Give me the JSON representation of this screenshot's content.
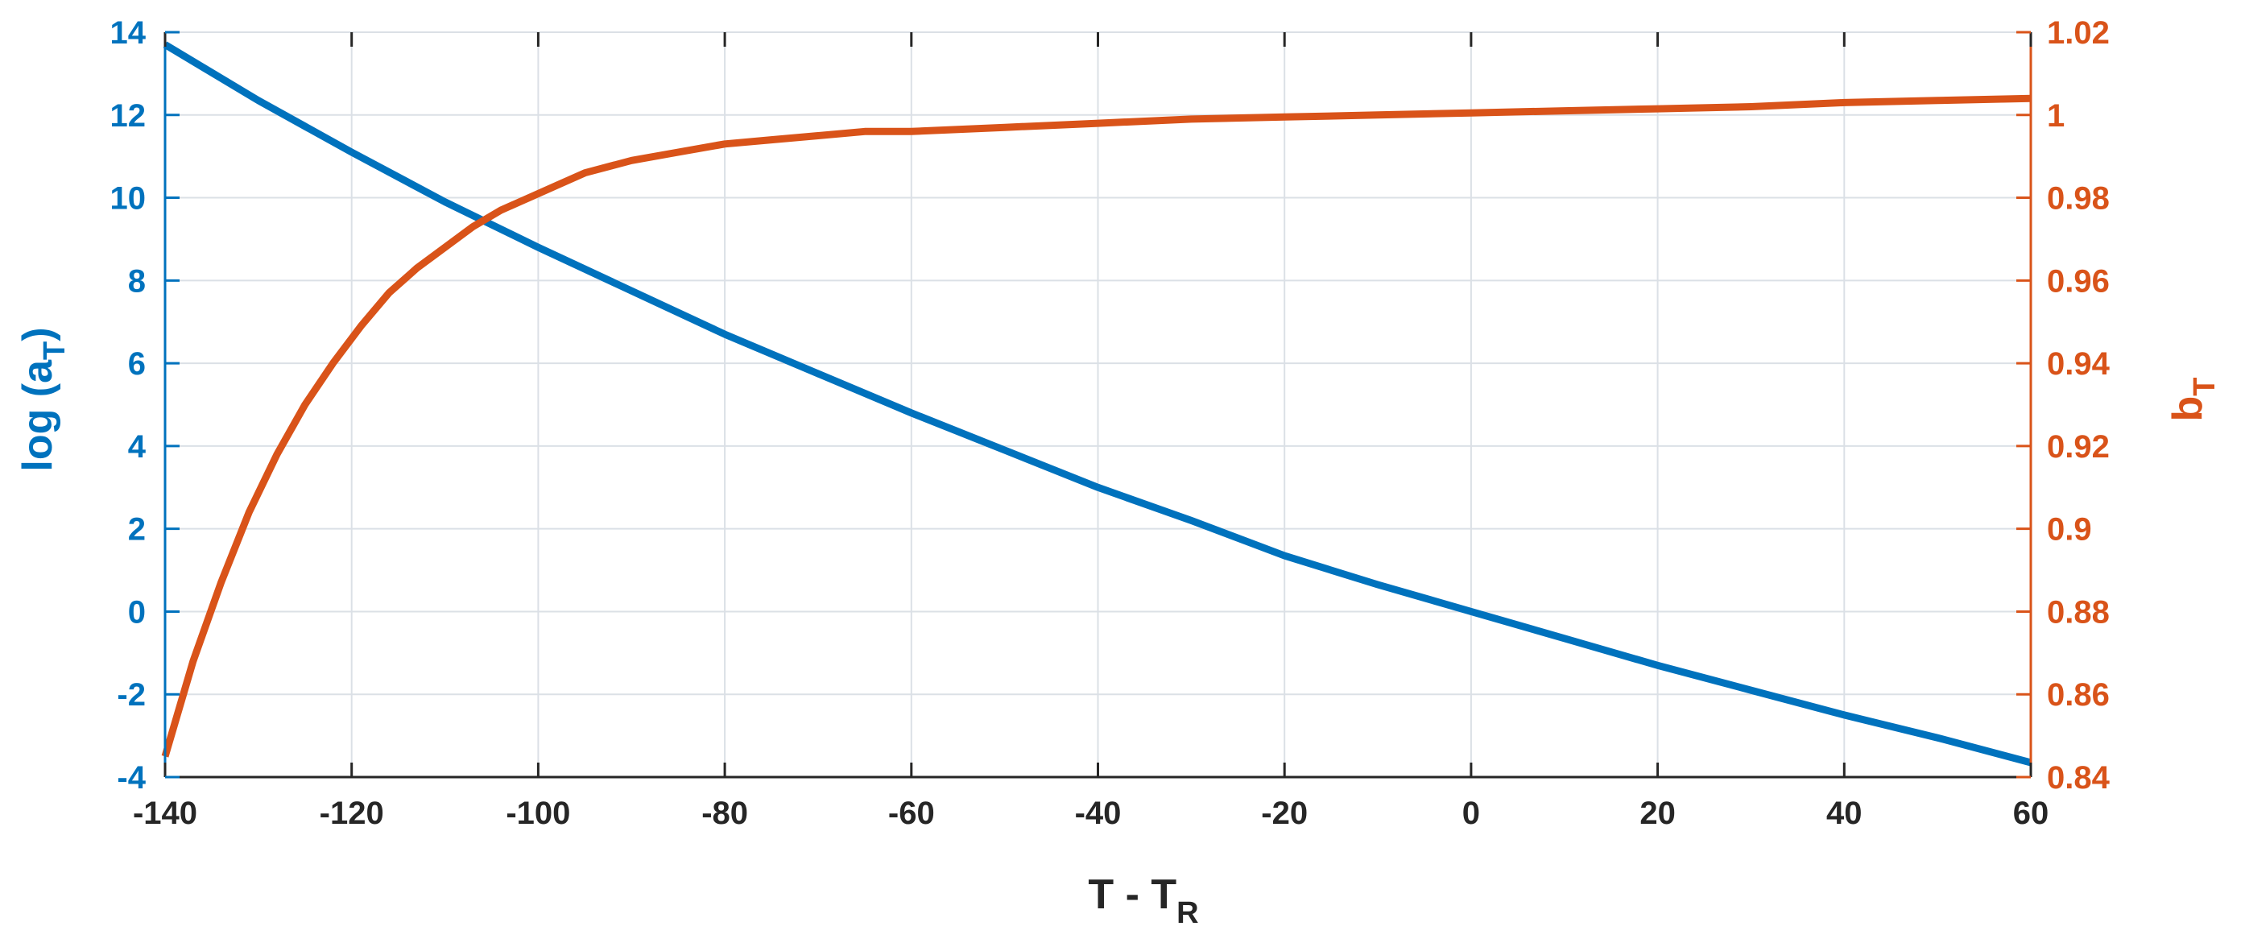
{
  "colors": {
    "left": "#0072BD",
    "right": "#D95319",
    "grid": "#dbe0e6",
    "xaxis": "#262626"
  },
  "chart_data": {
    "type": "line",
    "dual_axis": true,
    "grid": true,
    "xlabel": {
      "main": "T - T",
      "sub": "R"
    },
    "ylabel_left": {
      "main": "log (a",
      "sub": "T",
      "close": ")"
    },
    "ylabel_right": {
      "main": "b",
      "sub": "T"
    },
    "xlim": [
      -140,
      60
    ],
    "ylim_left": [
      -4,
      14
    ],
    "ylim_right": [
      0.84,
      1.02
    ],
    "x_ticks": [
      "-140",
      "-120",
      "-100",
      "-80",
      "-60",
      "-40",
      "-20",
      "0",
      "20",
      "40",
      "60"
    ],
    "y_left_ticks": [
      "-4",
      "-2",
      "0",
      "2",
      "4",
      "6",
      "8",
      "10",
      "12",
      "14"
    ],
    "y_right_ticks": [
      "0.84",
      "0.86",
      "0.88",
      "0.9",
      "0.92",
      "0.94",
      "0.96",
      "0.98",
      "1",
      "1.02"
    ],
    "series": [
      {
        "axis": "left",
        "color": "#0072BD",
        "x": [
          -140,
          -130,
          -120,
          -110,
          -100,
          -90,
          -80,
          -70,
          -60,
          -50,
          -40,
          -30,
          -20,
          -10,
          0,
          10,
          20,
          30,
          40,
          50,
          60
        ],
        "y": [
          13.7,
          12.35,
          11.1,
          9.9,
          8.8,
          7.75,
          6.7,
          5.75,
          4.8,
          3.9,
          3.0,
          2.2,
          1.35,
          0.65,
          0.0,
          -0.65,
          -1.3,
          -1.9,
          -2.5,
          -3.05,
          -3.65
        ]
      },
      {
        "axis": "right",
        "color": "#D95319",
        "x": [
          -140,
          -137,
          -134,
          -131,
          -128,
          -125,
          -122,
          -119,
          -116,
          -113,
          -110,
          -107,
          -104,
          -101,
          -98,
          -95,
          -90,
          -85,
          -80,
          -75,
          -70,
          -65,
          -60,
          -50,
          -40,
          -30,
          -20,
          -10,
          0,
          10,
          20,
          30,
          40,
          50,
          60
        ],
        "y": [
          0.845,
          0.868,
          0.887,
          0.904,
          0.918,
          0.93,
          0.94,
          0.949,
          0.957,
          0.963,
          0.968,
          0.973,
          0.977,
          0.98,
          0.983,
          0.986,
          0.989,
          0.991,
          0.993,
          0.994,
          0.995,
          0.996,
          0.996,
          0.997,
          0.998,
          0.999,
          0.9995,
          1.0,
          1.0005,
          1.001,
          1.0015,
          1.002,
          1.003,
          1.0035,
          1.004
        ]
      }
    ]
  }
}
